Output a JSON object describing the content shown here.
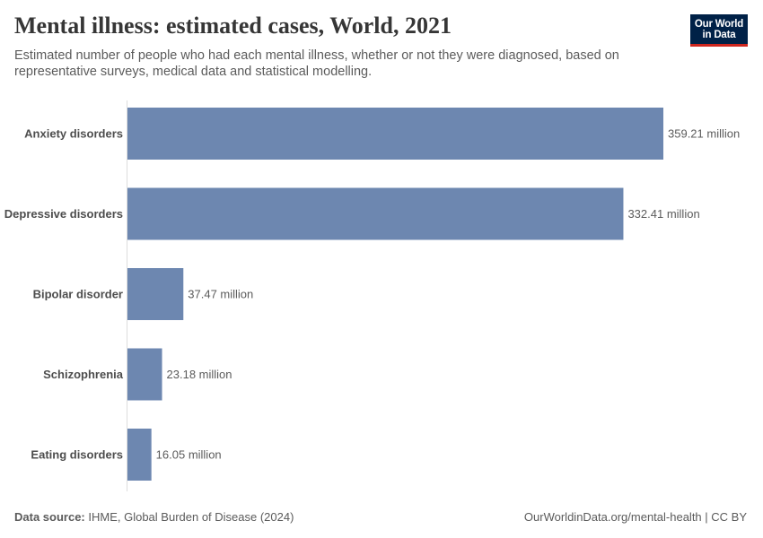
{
  "header": {
    "title": "Mental illness: estimated cases, World, 2021",
    "subtitle": "Estimated number of people who had each mental illness, whether or not they were diagnosed, based on representative surveys, medical data and statistical modelling."
  },
  "logo": {
    "line1": "Our World",
    "line2": "in Data",
    "bg_color": "#002147",
    "accent_color": "#ce261e"
  },
  "footer": {
    "source_label": "Data source:",
    "source_text": "IHME, Global Burden of Disease (2024)",
    "url_text": "OurWorldinData.org/mental-health | CC BY"
  },
  "chart_data": {
    "type": "bar",
    "orientation": "horizontal",
    "categories": [
      "Anxiety disorders",
      "Depressive disorders",
      "Bipolar disorder",
      "Schizophrenia",
      "Eating disorders"
    ],
    "values": [
      359.21,
      332.41,
      37.47,
      23.18,
      16.05
    ],
    "value_labels": [
      "359.21 million",
      "332.41 million",
      "37.47 million",
      "23.18 million",
      "16.05 million"
    ],
    "unit": "million",
    "bar_color": "#6d87b0",
    "xlim": [
      0,
      359.21
    ],
    "grid": false
  }
}
